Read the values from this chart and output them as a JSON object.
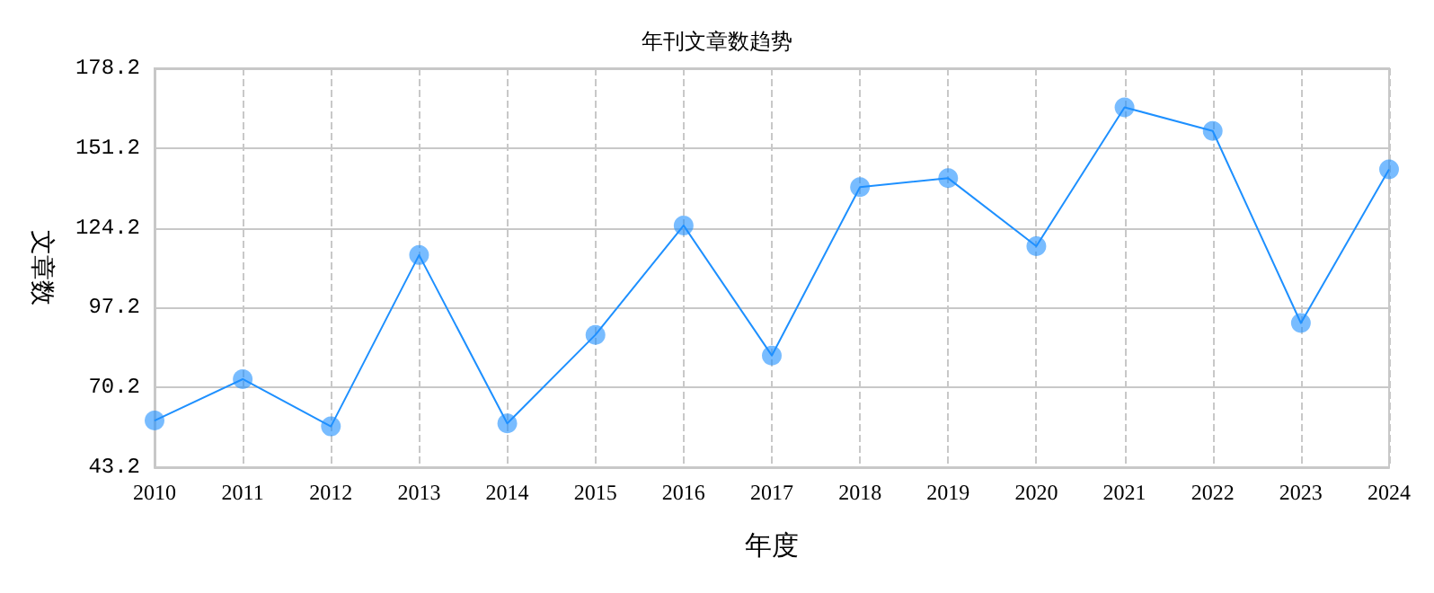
{
  "chart_data": {
    "type": "line",
    "title": "年刊文章数趋势",
    "xlabel": "年度",
    "ylabel": "文章数",
    "categories": [
      "2010",
      "2011",
      "2012",
      "2013",
      "2014",
      "2015",
      "2016",
      "2017",
      "2018",
      "2019",
      "2020",
      "2021",
      "2022",
      "2023",
      "2024"
    ],
    "series": [
      {
        "color": "#1e90ff",
        "values": [
          59,
          73,
          57,
          115,
          58,
          88,
          125,
          81,
          138,
          141,
          118,
          165,
          157,
          92,
          144
        ]
      }
    ],
    "ylim": [
      43.2,
      178.2
    ],
    "yticks": [
      43.2,
      70.2,
      97.2,
      124.2,
      151.2,
      178.2
    ],
    "grid": true,
    "marker": "circle",
    "line_style": "solid"
  }
}
